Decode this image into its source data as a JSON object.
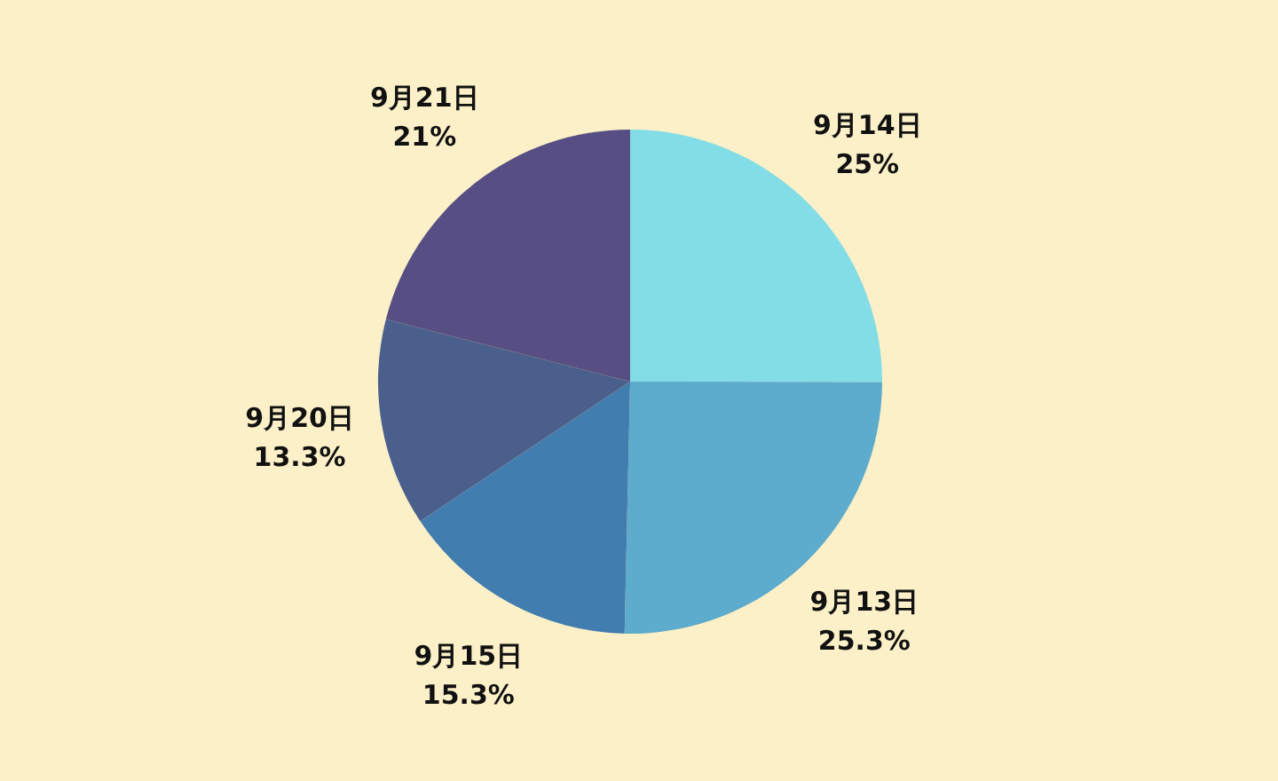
{
  "chart_data": {
    "type": "pie",
    "categories": [
      "9月14日",
      "9月13日",
      "9月15日",
      "9月20日",
      "9月21日"
    ],
    "values": [
      25,
      25.3,
      15.3,
      13.3,
      21
    ],
    "colors": [
      "#83dde6",
      "#5dabcd",
      "#417dae",
      "#4a5f8c",
      "#574f83"
    ],
    "value_labels": [
      "25%",
      "25.3%",
      "15.3%",
      "13.3%",
      "21%"
    ]
  }
}
